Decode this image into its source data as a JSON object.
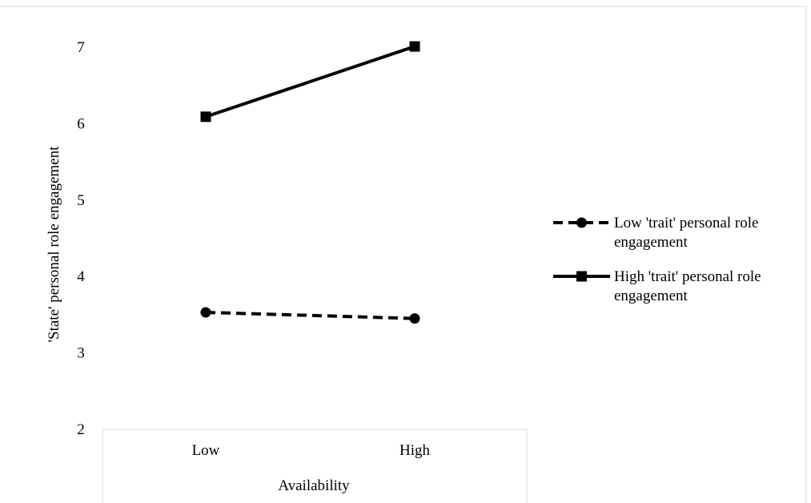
{
  "chart_data": {
    "type": "line",
    "title": "",
    "xlabel": "Availability",
    "ylabel": "'State' personal role engagement",
    "categories": [
      "Low",
      "High"
    ],
    "ylim": [
      2,
      7
    ],
    "yticks": [
      2,
      3,
      4,
      5,
      6,
      7
    ],
    "grid": false,
    "legend_position": "right",
    "series": [
      {
        "name": "Low 'trait' personal role engagement",
        "legend_lines": [
          "Low 'trait' personal role",
          "engagement"
        ],
        "values": [
          3.52,
          3.44
        ],
        "line_style": "dashed",
        "marker": "circle",
        "color": "#000000"
      },
      {
        "name": "High 'trait' personal role engagement",
        "legend_lines": [
          "High 'trait' personal role",
          "engagement"
        ],
        "values": [
          6.08,
          7.0
        ],
        "line_style": "solid",
        "marker": "square",
        "color": "#000000"
      }
    ]
  }
}
